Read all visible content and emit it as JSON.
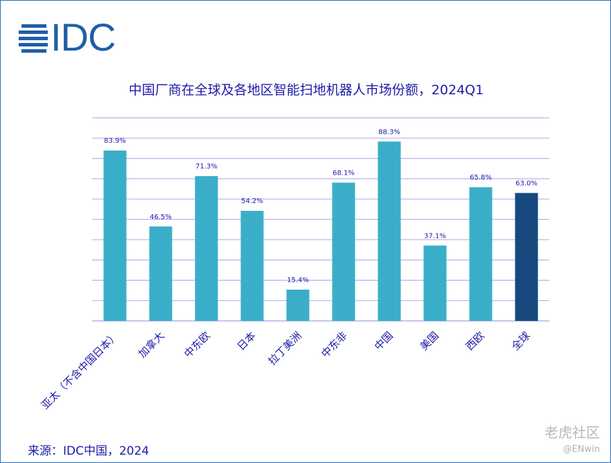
{
  "logo": {
    "text": "IDC"
  },
  "chart_data": {
    "type": "bar",
    "title": "中国厂商在全球及各地区智能扫地机器人市场份额，2024Q1",
    "xlabel": "",
    "ylabel": "",
    "categories": [
      "亚太（不含中国日本）",
      "加拿大",
      "中东欧",
      "日本",
      "拉丁美洲",
      "中东非",
      "中国",
      "美国",
      "西欧",
      "全球"
    ],
    "values": [
      83.9,
      46.5,
      71.3,
      54.2,
      15.4,
      68.1,
      88.3,
      37.1,
      65.8,
      63.0
    ],
    "value_labels": [
      "83.9%",
      "46.5%",
      "71.3%",
      "54.2%",
      "15.4%",
      "68.1%",
      "88.3%",
      "37.1%",
      "65.8%",
      "63.0%"
    ],
    "ylim": [
      0,
      100
    ],
    "grid": true,
    "colors": {
      "bar": "#3aaec8",
      "highlight": "#17497f",
      "grid": "#b4b4ee",
      "text": "#1c1ca8"
    },
    "highlight_index": 9
  },
  "source": "来源：IDC中国，2024",
  "watermark": {
    "text": "老虎社区",
    "handle": "@ENwin"
  }
}
